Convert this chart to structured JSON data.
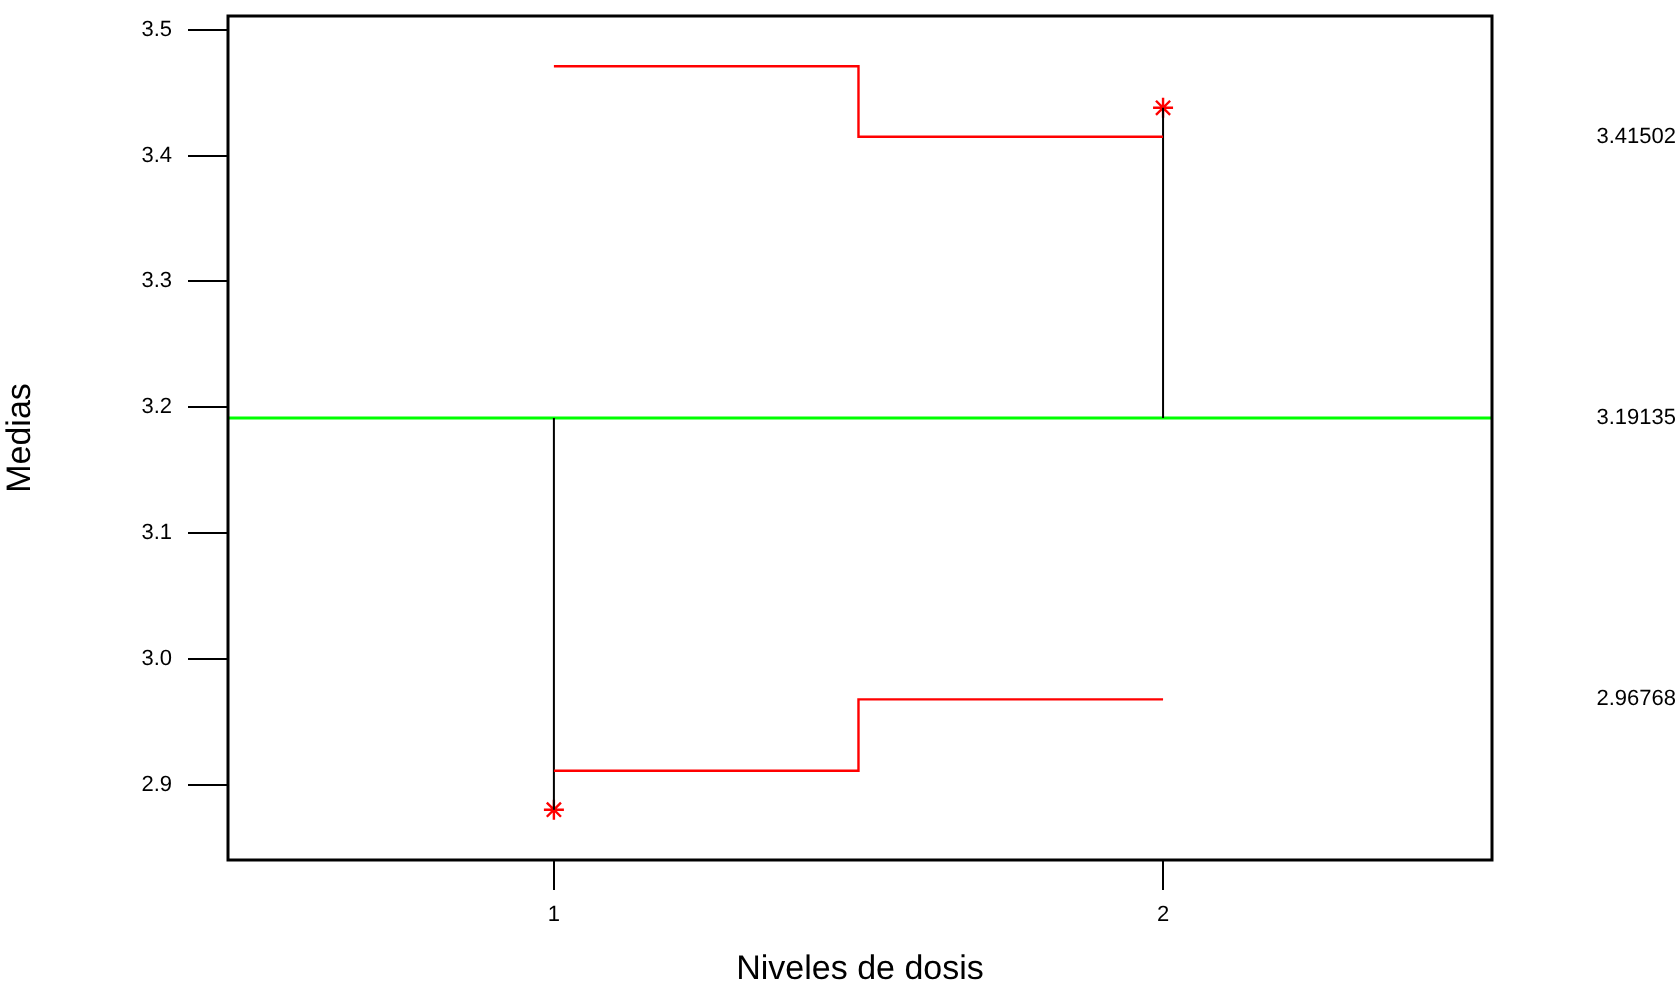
{
  "chart_data": {
    "type": "step",
    "xlabel": "Niveles de dosis",
    "ylabel": "Medias",
    "xlim": [
      0.465,
      2.54
    ],
    "xticks": [
      1,
      2
    ],
    "ylim": [
      2.84,
      3.511
    ],
    "yticks": [
      2.9,
      {
        "value": 3,
        "label": "3.0"
      },
      3.1,
      3.2,
      3.3,
      3.4,
      3.5
    ],
    "y2lim": [
      2.84,
      3.511
    ],
    "y2ticks": [
      3.41502,
      3.19135,
      2.96768
    ],
    "grid": false,
    "ref_lines": [
      {
        "axis": "y",
        "value": 3.19135,
        "color": "#00ff00"
      }
    ],
    "series": [
      {
        "color": "#ff0000",
        "x": [
          1,
          1.5,
          2
        ],
        "values": [
          3.471,
          3.41502,
          3.41502
        ]
      },
      {
        "color": "#ff0000",
        "x": [
          1,
          1.5,
          2
        ],
        "values": [
          2.911,
          2.96768,
          2.96768
        ]
      },
      {
        "type": "line",
        "color": "#000000",
        "x": [
          1,
          1
        ],
        "values": [
          3.19135,
          2.88
        ]
      },
      {
        "type": "line",
        "color": "#000000",
        "x": [
          2,
          2
        ],
        "values": [
          3.19135,
          3.438
        ]
      },
      {
        "type": "scatter",
        "color": "#ff0000",
        "marker": "cross",
        "x": [
          1,
          2
        ],
        "values": [
          2.88,
          3.438
        ]
      }
    ]
  }
}
